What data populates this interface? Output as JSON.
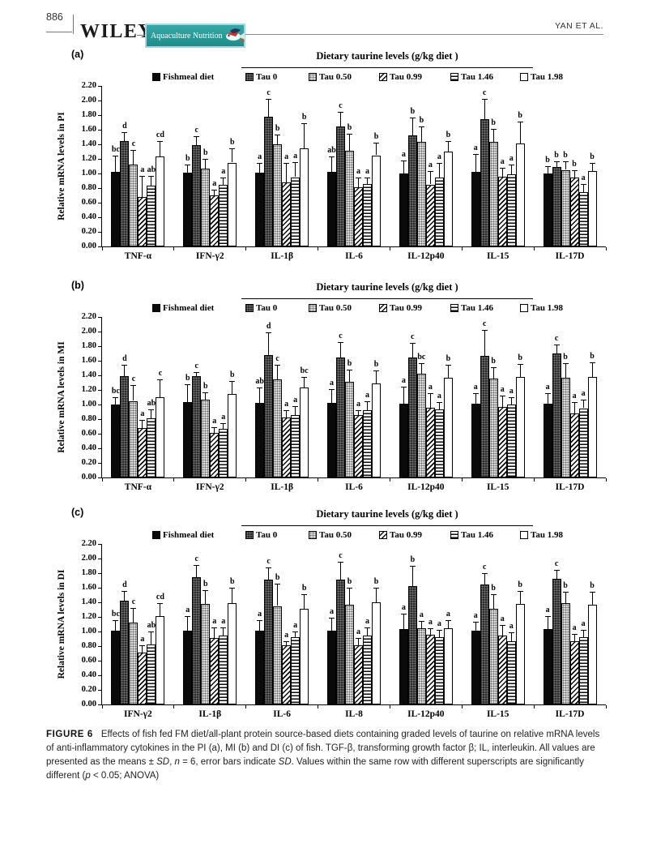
{
  "header": {
    "page_number": "886",
    "publisher": "WILEY",
    "journal_badge": "Aquaculture Nutrition",
    "running_head": "YAN ET AL."
  },
  "caption": {
    "label": "FIGURE 6",
    "segments": [
      {
        "text": "Effects of fish fed FM diet/all-plant protein source-based diets containing graded levels of taurine on relative mRNA levels of anti-inflammatory cytokines in the PI (a), MI (b) and DI (c) of fish. TGF-β, transforming growth factor β; IL, interleukin. All values are presented as the means ± ",
        "italic": false
      },
      {
        "text": "SD",
        "italic": true
      },
      {
        "text": ", ",
        "italic": false
      },
      {
        "text": "n",
        "italic": true
      },
      {
        "text": " = 6, error bars indicate ",
        "italic": false
      },
      {
        "text": "SD",
        "italic": true
      },
      {
        "text": ". Values within the same row with different superscripts are significantly different (",
        "italic": false
      },
      {
        "text": "p",
        "italic": true
      },
      {
        "text": " < 0.05; ANOVA)",
        "italic": false
      }
    ]
  },
  "chart_data": [
    {
      "type": "bar",
      "panel": "(a)",
      "title": "Dietary taurine levels (g/kg diet )",
      "ylabel": "Relative mRNA levels in PI",
      "ylim": [
        0,
        2.2
      ],
      "ytick_step": 0.2,
      "grid": false,
      "legend_position": "top",
      "categories": [
        "TNF-α",
        "IFN-γ2",
        "IL-1β",
        "IL-6",
        "IL-12p40",
        "IL-15",
        "IL-17D"
      ],
      "series": [
        {
          "name": "Fishmeal diet",
          "pattern": "solid-black",
          "values": [
            1.02,
            1.01,
            1.01,
            1.02,
            1.0,
            1.02,
            1.0
          ],
          "errors": [
            0.23,
            0.11,
            0.13,
            0.21,
            0.18,
            0.25,
            0.1
          ],
          "letters": [
            "bc",
            "b",
            "a",
            "ab",
            "a",
            "a",
            "b"
          ]
        },
        {
          "name": "Tau 0",
          "pattern": "dark-speckle",
          "values": [
            1.44,
            1.39,
            1.78,
            1.64,
            1.52,
            1.74,
            1.09
          ],
          "errors": [
            0.13,
            0.12,
            0.24,
            0.2,
            0.25,
            0.28,
            0.08
          ],
          "letters": [
            "d",
            "c",
            "c",
            "c",
            "b",
            "c",
            "b"
          ]
        },
        {
          "name": "Tau 0.50",
          "pattern": "light-speckle",
          "values": [
            1.12,
            1.07,
            1.4,
            1.31,
            1.43,
            1.43,
            1.05
          ],
          "errors": [
            0.2,
            0.13,
            0.13,
            0.24,
            0.22,
            0.18,
            0.12
          ],
          "letters": [
            "c",
            "b",
            "b",
            "b",
            "b",
            "b",
            "b"
          ]
        },
        {
          "name": "Tau 0.99",
          "pattern": "diagonal-hatch",
          "values": [
            0.68,
            0.7,
            0.88,
            0.81,
            0.85,
            0.96,
            0.95
          ],
          "errors": [
            0.29,
            0.08,
            0.27,
            0.14,
            0.18,
            0.12,
            0.1
          ],
          "letters": [
            "a",
            "a",
            "a",
            "a",
            "a",
            "a",
            "b"
          ]
        },
        {
          "name": "Tau 1.46",
          "pattern": "horizontal-lines",
          "values": [
            0.83,
            0.84,
            0.95,
            0.86,
            0.95,
            0.99,
            0.74
          ],
          "errors": [
            0.14,
            0.1,
            0.21,
            0.09,
            0.2,
            0.13,
            0.12
          ],
          "letters": [
            "ab",
            "a",
            "a",
            "a",
            "a",
            "a",
            "a"
          ]
        },
        {
          "name": "Tau 1.98",
          "pattern": "white",
          "values": [
            1.23,
            1.15,
            1.34,
            1.25,
            1.3,
            1.41,
            1.03
          ],
          "errors": [
            0.21,
            0.19,
            0.35,
            0.17,
            0.15,
            0.3,
            0.12
          ],
          "letters": [
            "cd",
            "b",
            "b",
            "b",
            "b",
            "b",
            "b"
          ]
        }
      ]
    },
    {
      "type": "bar",
      "panel": "(b)",
      "title": "Dietary taurine levels (g/kg diet )",
      "ylabel": "Relative mRNA levels in  MI",
      "ylim": [
        0,
        2.2
      ],
      "ytick_step": 0.2,
      "grid": false,
      "legend_position": "top",
      "categories": [
        "TNF-α",
        "IFN-γ2",
        "IL-1β",
        "IL-6",
        "IL-12p40",
        "IL-15",
        "IL-17D"
      ],
      "series": [
        {
          "name": "Fishmeal diet",
          "pattern": "solid-black",
          "values": [
            1.0,
            1.03,
            1.02,
            1.02,
            1.01,
            1.01,
            1.01
          ],
          "errors": [
            0.1,
            0.25,
            0.21,
            0.19,
            0.24,
            0.15,
            0.15
          ],
          "letters": [
            "bc",
            "b",
            "ab",
            "a",
            "a",
            "a",
            "a"
          ]
        },
        {
          "name": "Tau 0",
          "pattern": "dark-speckle",
          "values": [
            1.39,
            1.39,
            1.68,
            1.64,
            1.65,
            1.67,
            1.7
          ],
          "errors": [
            0.15,
            0.06,
            0.31,
            0.22,
            0.2,
            0.35,
            0.12
          ],
          "letters": [
            "d",
            "c",
            "d",
            "c",
            "c",
            "c",
            "c"
          ]
        },
        {
          "name": "Tau 0.50",
          "pattern": "light-speckle",
          "values": [
            1.05,
            1.07,
            1.34,
            1.31,
            1.42,
            1.36,
            1.37
          ],
          "errors": [
            0.22,
            0.1,
            0.2,
            0.17,
            0.15,
            0.15,
            0.2
          ],
          "letters": [
            "c",
            "b",
            "c",
            "b",
            "bc",
            "b",
            "b"
          ]
        },
        {
          "name": "Tau 0.99",
          "pattern": "diagonal-hatch",
          "values": [
            0.68,
            0.61,
            0.82,
            0.86,
            0.96,
            0.97,
            0.88
          ],
          "errors": [
            0.11,
            0.08,
            0.1,
            0.06,
            0.2,
            0.15,
            0.15
          ],
          "letters": [
            "a",
            "a",
            "a",
            "a",
            "a",
            "a",
            "a"
          ]
        },
        {
          "name": "Tau 1.46",
          "pattern": "horizontal-lines",
          "values": [
            0.81,
            0.67,
            0.86,
            0.92,
            0.93,
            1.0,
            0.95
          ],
          "errors": [
            0.12,
            0.08,
            0.12,
            0.12,
            0.1,
            0.1,
            0.12
          ],
          "letters": [
            "ab",
            "a",
            "a",
            "a",
            "a",
            "a",
            "a"
          ]
        },
        {
          "name": "Tau 1.98",
          "pattern": "white",
          "values": [
            1.1,
            1.14,
            1.23,
            1.29,
            1.37,
            1.38,
            1.38
          ],
          "errors": [
            0.25,
            0.18,
            0.15,
            0.18,
            0.18,
            0.18,
            0.2
          ],
          "letters": [
            "c",
            "b",
            "bc",
            "b",
            "b",
            "b",
            "b"
          ]
        }
      ]
    },
    {
      "type": "bar",
      "panel": "(c)",
      "title": "Dietary taurine levels (g/kg diet )",
      "ylabel": "Relative mRNA levels in  DI",
      "ylim": [
        0,
        2.2
      ],
      "ytick_step": 0.2,
      "grid": false,
      "legend_position": "top",
      "categories": [
        "IFN-γ2",
        "IL-1β",
        "IL-6",
        "IL-8",
        "IL-12p40",
        "IL-15",
        "IL-17D"
      ],
      "series": [
        {
          "name": "Fishmeal diet",
          "pattern": "solid-black",
          "values": [
            1.01,
            1.01,
            1.01,
            1.01,
            1.03,
            1.01,
            1.03
          ],
          "errors": [
            0.15,
            0.2,
            0.15,
            0.18,
            0.22,
            0.12,
            0.18
          ],
          "letters": [
            "bc",
            "a",
            "a",
            "a",
            "a",
            "a",
            "a"
          ]
        },
        {
          "name": "Tau 0",
          "pattern": "dark-speckle",
          "values": [
            1.42,
            1.74,
            1.71,
            1.71,
            1.62,
            1.65,
            1.72
          ],
          "errors": [
            0.14,
            0.17,
            0.17,
            0.25,
            0.28,
            0.15,
            0.12
          ],
          "letters": [
            "d",
            "c",
            "c",
            "c",
            "b",
            "c",
            "c"
          ]
        },
        {
          "name": "Tau 0.50",
          "pattern": "light-speckle",
          "values": [
            1.12,
            1.38,
            1.35,
            1.37,
            1.04,
            1.31,
            1.39
          ],
          "errors": [
            0.2,
            0.19,
            0.31,
            0.23,
            0.1,
            0.2,
            0.15
          ],
          "letters": [
            "c",
            "b",
            "b",
            "b",
            "a",
            "b",
            "b"
          ]
        },
        {
          "name": "Tau 0.99",
          "pattern": "diagonal-hatch",
          "values": [
            0.71,
            0.91,
            0.81,
            0.81,
            0.96,
            0.94,
            0.87
          ],
          "errors": [
            0.1,
            0.15,
            0.06,
            0.1,
            0.08,
            0.15,
            0.1
          ],
          "letters": [
            "a",
            "a",
            "a",
            "a",
            "a",
            "a",
            "a"
          ]
        },
        {
          "name": "Tau 1.46",
          "pattern": "horizontal-lines",
          "values": [
            0.82,
            0.94,
            0.92,
            0.94,
            0.92,
            0.87,
            0.92
          ],
          "errors": [
            0.18,
            0.12,
            0.08,
            0.12,
            0.1,
            0.12,
            0.1
          ],
          "letters": [
            "ab",
            "a",
            "a",
            "a",
            "a",
            "a",
            "a"
          ]
        },
        {
          "name": "Tau 1.98",
          "pattern": "white",
          "values": [
            1.21,
            1.39,
            1.31,
            1.4,
            1.04,
            1.38,
            1.37
          ],
          "errors": [
            0.18,
            0.21,
            0.2,
            0.2,
            0.12,
            0.18,
            0.18
          ],
          "letters": [
            "cd",
            "b",
            "b",
            "b",
            "a",
            "b",
            "b"
          ]
        }
      ]
    }
  ]
}
